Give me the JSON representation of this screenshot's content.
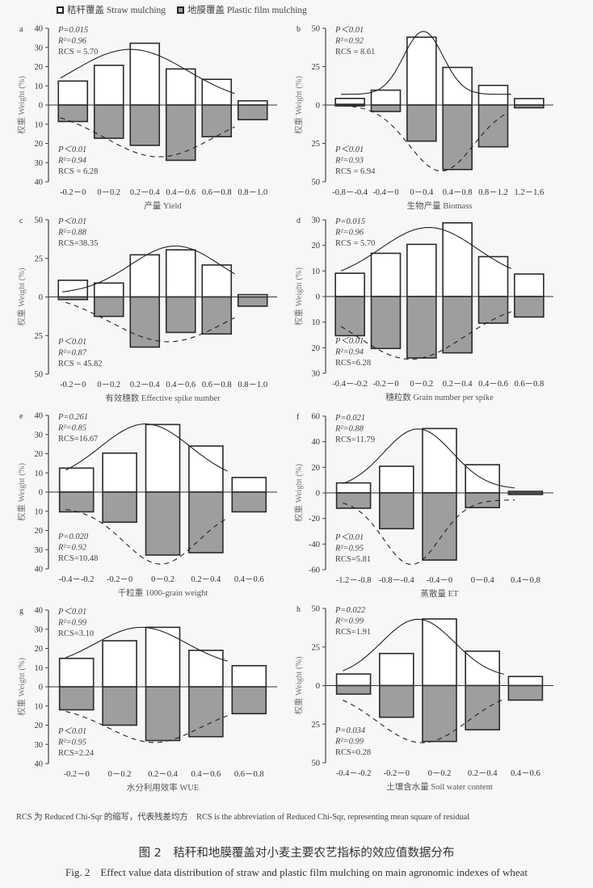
{
  "legend": {
    "straw": "秸秆覆盖 Straw mulching",
    "film": "地膜覆盖 Plastic film mulching"
  },
  "note": "RCS 为 Reduced Chi-Sqr 的缩写，代表残差均方　RCS is the abbreviation of Reduced Chi-Sqr, representing mean square of residual",
  "caption": {
    "cn": "图 2　秸秆和地膜覆盖对小麦主要农艺指标的效应值数据分布",
    "en": "Fig. 2　Effect value data distribution of straw and plastic film mulching on main agronomic indexes of wheat"
  },
  "colors": {
    "straw_fill": "#ffffff",
    "film_fill": "#9e9e9e",
    "stroke": "#2a2a2a",
    "axis": "#444444"
  },
  "chart_data": [
    {
      "panel": "a",
      "type": "bar",
      "xlabel": "产量 Yield",
      "ylabel": "权重 Weight (%)",
      "yticks_up": [
        "40",
        "30",
        "20",
        "10",
        "0"
      ],
      "yticks_down": [
        "10",
        "20",
        "30",
        "40"
      ],
      "ylim": [
        -40,
        40
      ],
      "categories": [
        "-0.2－0",
        "0－0.2",
        "0.2－0.4",
        "0.4－0.6",
        "0.6－0.8",
        "0.8－1.0"
      ],
      "series": [
        {
          "name": "秸秆覆盖 Straw mulching",
          "values": [
            12.5,
            20.7,
            32.2,
            18.8,
            13.4,
            2.2
          ]
        },
        {
          "name": "地膜覆盖 Plastic film mulching",
          "values": [
            -8.6,
            -17.3,
            -21.0,
            -28.8,
            -16.5,
            -7.6
          ]
        }
      ],
      "fit_up": {
        "peak_x": 2.1,
        "peak_y": 29.0,
        "width": 1.6,
        "base": 0.5,
        "from": 0.15,
        "to": 5.0
      },
      "fit_down": {
        "peak_x": 2.9,
        "peak_y": -27.0,
        "width": 1.5,
        "base": -2.0,
        "from": 0.15,
        "to": 5.0
      },
      "stats_up": {
        "p": "P=0.015",
        "r2": "R²=0.96",
        "rcs": "RCS = 5.70"
      },
      "stats_down": {
        "p": "P＜0.01",
        "r2": "R²=0.94",
        "rcs": "RCS = 6.28"
      }
    },
    {
      "panel": "b",
      "type": "bar",
      "xlabel": "生物产量 Biomass",
      "ylabel": "权重 Weight (%)",
      "yticks_up": [
        "50",
        "25",
        "0"
      ],
      "yticks_down": [
        "25",
        "50"
      ],
      "ylim": [
        -50,
        50
      ],
      "categories": [
        "-0.8－-0.4",
        "-0.4－0",
        "0－0.4",
        "0.4－0.8",
        "0.8－1.2",
        "1.2－1.6"
      ],
      "series": [
        {
          "name": "秸秆覆盖 Straw mulching",
          "values": [
            4.3,
            9.7,
            44.2,
            24.5,
            12.8,
            4.2
          ]
        },
        {
          "name": "地膜覆盖 Plastic film mulching",
          "values": [
            0.5,
            -4.2,
            -23.5,
            -42.0,
            -27.2,
            -1.8
          ]
        }
      ],
      "fit_up": {
        "peak_x": 2.55,
        "peak_y": 48.0,
        "width": 0.55,
        "base": 7.0,
        "from": 0.25,
        "to": 5.0
      },
      "fit_down": {
        "peak_x": 3.05,
        "peak_y": -43.0,
        "width": 0.9,
        "base": 0.0,
        "from": 0.3,
        "to": 4.9
      },
      "stats_up": {
        "p": "P＜0.01",
        "r2": "R²=0.92",
        "rcs": "RCS = 8.61"
      },
      "stats_down": {
        "p": "P＜0.01",
        "r2": "R²=0.93",
        "rcs": "RCS = 6.94"
      }
    },
    {
      "panel": "c",
      "type": "bar",
      "xlabel": "有效穗数 Effective spike number",
      "ylabel": "权重 Weight (%)",
      "yticks_up": [
        "50",
        "25",
        "0"
      ],
      "yticks_down": [
        "25",
        "50"
      ],
      "ylim": [
        -50,
        50
      ],
      "categories": [
        "-0.2－0",
        "0－0.2",
        "0.2－0.4",
        "0.4－0.6",
        "0.6－0.8",
        "0.8－1.0"
      ],
      "series": [
        {
          "name": "秸秆覆盖 Straw mulching",
          "values": [
            10.8,
            9.0,
            27.3,
            30.5,
            20.7,
            1.5
          ]
        },
        {
          "name": "地膜覆盖 Plastic film mulching",
          "values": [
            -1.7,
            -12.6,
            -32.5,
            -23.0,
            -24.0,
            -6.0
          ]
        }
      ],
      "fit_up": {
        "peak_x": 3.35,
        "peak_y": 33.0,
        "width": 1.25,
        "base": 2.0,
        "from": 0.2,
        "to": 5.0
      },
      "fit_down": {
        "peak_x": 3.15,
        "peak_y": -29.0,
        "width": 1.6,
        "base": 3.0,
        "from": 0.3,
        "to": 5.0
      },
      "stats_up": {
        "p": "P＜0.01",
        "r2": "R²=0.88",
        "rcs": "RCS=38.35"
      },
      "stats_down": {
        "p": "P＜0.01",
        "r2": "R²=0.87",
        "rcs": "RCS = 45.82"
      }
    },
    {
      "panel": "d",
      "type": "bar",
      "xlabel": "穗粒数 Grain number per spike",
      "ylabel": "权重 Weight (%)",
      "yticks_up": [
        "30",
        "20",
        "10",
        "0"
      ],
      "yticks_down": [
        "10",
        "20",
        "30"
      ],
      "ylim": [
        -30,
        30
      ],
      "categories": [
        "-0.4－-0.2",
        "-0.2－0",
        "0－0.2",
        "0.2－0.4",
        "0.4－0.6",
        "0.6－0.8"
      ],
      "series": [
        {
          "name": "秸秆覆盖 Straw mulching",
          "values": [
            9.1,
            16.9,
            20.4,
            28.8,
            15.6,
            8.8
          ]
        },
        {
          "name": "地膜覆盖 Plastic film mulching",
          "values": [
            -15.3,
            -20.3,
            -24.0,
            -22.0,
            -10.4,
            -8.0
          ]
        }
      ],
      "fit_up": {
        "peak_x": 2.7,
        "peak_y": 27.0,
        "width": 1.35,
        "base": 6.0,
        "from": 0.25,
        "to": 5.0
      },
      "fit_down": {
        "peak_x": 2.2,
        "peak_y": -24.5,
        "width": 1.5,
        "base": -2.0,
        "from": 0.25,
        "to": 5.0
      },
      "stats_up": {
        "p": "P=0.015",
        "r2": "R²=0.96",
        "rcs": "RCS = 5.70"
      },
      "stats_down": {
        "p": "P＜0.01",
        "r2": "R²=0.94",
        "rcs": "RCS=6.28"
      }
    },
    {
      "panel": "e",
      "type": "bar",
      "xlabel": "千粒重 1000-grain weight",
      "ylabel": "权重 Weight (%)",
      "yticks_up": [
        "40",
        "30",
        "20",
        "10",
        "0"
      ],
      "yticks_down": [
        "10",
        "20",
        "30",
        "40"
      ],
      "ylim": [
        -40,
        40
      ],
      "categories": [
        "-0.4－-0.2",
        "-0.2－0",
        "0－0.2",
        "0.2－0.4",
        "0.4－0.6"
      ],
      "series": [
        {
          "name": "秸秆覆盖 Straw mulching",
          "values": [
            12.5,
            20.3,
            35.2,
            24.0,
            7.6
          ]
        },
        {
          "name": "地膜覆盖 Plastic film mulching",
          "values": [
            -10.3,
            -15.7,
            -32.8,
            -31.6,
            -10.3
          ]
        }
      ],
      "fit_up": {
        "peak_x": 2.1,
        "peak_y": 35.5,
        "width": 1.05,
        "base": 5.0,
        "from": 0.25,
        "to": 4.0
      },
      "fit_down": {
        "peak_x": 2.45,
        "peak_y": -37.5,
        "width": 0.85,
        "base": -8.0,
        "from": 0.25,
        "to": 4.0
      },
      "stats_up": {
        "p": "P=0.261",
        "r2": "R²=0.85",
        "rcs": "RCS=16.67"
      },
      "stats_down": {
        "p": "P=0.020",
        "r2": "R²=0.92",
        "rcs": "RCS=10.48"
      }
    },
    {
      "panel": "f",
      "type": "bar",
      "xlabel": "蒸散量 ET",
      "ylabel": "权重 Weight (%)",
      "yticks_up": [
        "60",
        "40",
        "20",
        "0"
      ],
      "yticks_down": [
        "-20",
        "-40",
        "-60"
      ],
      "ylim": [
        -60,
        60
      ],
      "categories": [
        "-1.2－-0.8",
        "-0.8－-0.4",
        "-0.4－0",
        "0－0.4",
        "0.4－0.8"
      ],
      "series": [
        {
          "name": "秸秆覆盖 Straw mulching",
          "values": [
            7.8,
            20.8,
            50.3,
            22.0,
            1.2
          ]
        },
        {
          "name": "地膜覆盖 Plastic film mulching",
          "values": [
            -12.0,
            -28.0,
            -52.5,
            -11.5,
            -1.2
          ]
        }
      ],
      "fit_up": {
        "peak_x": 2.0,
        "peak_y": 50.0,
        "width": 0.8,
        "base": 3.0,
        "from": 0.25,
        "to": 4.25
      },
      "fit_down": {
        "peak_x": 1.85,
        "peak_y": -56.0,
        "width": 0.65,
        "base": -5.5,
        "from": 0.25,
        "to": 4.25
      },
      "stats_up": {
        "p": "P=0.021",
        "r2": "R²=0.88",
        "rcs": "RCS=11.79"
      },
      "stats_down": {
        "p": "P＜0.01",
        "r2": "R²=0.95",
        "rcs": "RCS=5.81"
      }
    },
    {
      "panel": "g",
      "type": "bar",
      "xlabel": "水分利用效率 WUE",
      "ylabel": "权重 Weight (%)",
      "yticks_up": [
        "40",
        "30",
        "20",
        "10",
        "0"
      ],
      "yticks_down": [
        "10",
        "20",
        "30",
        "40"
      ],
      "ylim": [
        -40,
        40
      ],
      "categories": [
        "-0.2－0",
        "0－0.2",
        "0.2－0.4",
        "0.4－0.6",
        "0.6－0.8"
      ],
      "series": [
        {
          "name": "秸秆覆盖 Straw mulching",
          "values": [
            14.8,
            24.0,
            31.0,
            19.0,
            11.0
          ]
        },
        {
          "name": "地膜覆盖 Plastic film mulching",
          "values": [
            -12.0,
            -20.0,
            -28.0,
            -26.0,
            -14.0
          ]
        }
      ],
      "fit_up": {
        "peak_x": 2.0,
        "peak_y": 31.0,
        "width": 1.05,
        "base": 10.0,
        "from": 0.25,
        "to": 4.0
      },
      "fit_down": {
        "peak_x": 2.3,
        "peak_y": -29.0,
        "width": 1.05,
        "base": -10.0,
        "from": 0.25,
        "to": 4.0
      },
      "stats_up": {
        "p": "P＜0.01",
        "r2": "R²=0.99",
        "rcs": "RCS=3.10"
      },
      "stats_down": {
        "p": "P＜0.01",
        "r2": "R²=0.95",
        "rcs": "RCS=2.24"
      }
    },
    {
      "panel": "h",
      "type": "bar",
      "xlabel": "土壤含水量 Soil water content",
      "ylabel": "权重 Weight (%)",
      "yticks_up": [
        "50",
        "25",
        "0"
      ],
      "yticks_down": [
        "25",
        "50"
      ],
      "ylim": [
        -50,
        50
      ],
      "categories": [
        "-0.4－-0.2",
        "-0.2－0",
        "0－0.2",
        "0.2－0.4",
        "0.4－0.6"
      ],
      "series": [
        {
          "name": "秸秆覆盖 Straw mulching",
          "values": [
            7.5,
            20.8,
            43.2,
            22.3,
            5.9
          ]
        },
        {
          "name": "地膜覆盖 Plastic film mulching",
          "values": [
            -5.5,
            -20.5,
            -36.2,
            -28.6,
            -9.4
          ]
        }
      ],
      "fit_up": {
        "peak_x": 2.0,
        "peak_y": 43.0,
        "width": 0.85,
        "base": 5.0,
        "from": 0.25,
        "to": 4.0
      },
      "fit_down": {
        "peak_x": 2.1,
        "peak_y": -37.0,
        "width": 1.05,
        "base": -2.0,
        "from": 0.25,
        "to": 4.0
      },
      "stats_up": {
        "p": "P=0.022",
        "r2": "R²=0.99",
        "rcs": "RCS=1.91"
      },
      "stats_down": {
        "p": "P=0.034",
        "r2": "R²=0.99",
        "rcs": "RCS=0.28"
      }
    }
  ]
}
